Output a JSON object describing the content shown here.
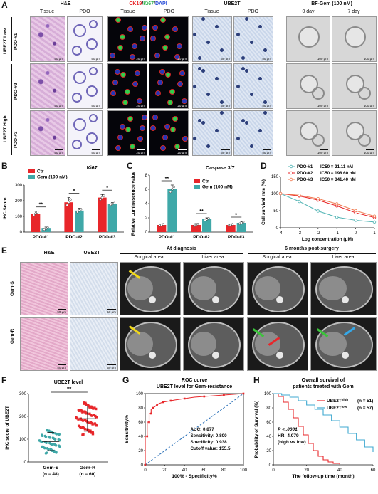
{
  "panels": {
    "A": {
      "label": "A",
      "headers": {
        "he": "H&E",
        "ck19": "CK19",
        "slash1": "/",
        "ki67": "Ki67",
        "slash2": "/",
        "dapi": "DAPI",
        "ube2t": "UBE2T",
        "bf": "BF-Gem (100 nM)"
      },
      "sub": {
        "tissue1": "Tissue",
        "pdo1": "PDO",
        "tissue2": "Tissue",
        "pdo2": "PDO",
        "tissue3": "Tissue",
        "pdo3": "PDO",
        "day0": "0 day",
        "day7": "7 day"
      },
      "rows": {
        "low": "UBE2T Low",
        "high": "UBE2T High",
        "pdo1": "PDO-#1",
        "pdo2": "PDO-#2",
        "pdo3": "PDO-#3"
      },
      "scales": {
        "s50": "50 μm",
        "s20": "20 μm",
        "s100": "100 μm"
      }
    },
    "B": {
      "label": "B"
    },
    "C": {
      "label": "C"
    },
    "D": {
      "label": "D"
    },
    "E": {
      "label": "E",
      "headers": {
        "he": "H&E",
        "ube2t": "UBE2T",
        "diag": "At diagnosis",
        "post": "6 months post-surgery",
        "surg1": "Surgical area",
        "liver1": "Liver area",
        "surg2": "Surgical area",
        "liver2": "Liver area"
      },
      "rows": {
        "gems": "Gem-S",
        "gemr": "Gem-R"
      },
      "scales": {
        "s50": "50 μm"
      }
    },
    "F": {
      "label": "F"
    },
    "G": {
      "label": "G"
    },
    "H": {
      "label": "H"
    }
  },
  "chart_data": [
    {
      "id": "B",
      "type": "bar",
      "title": "Ki67",
      "ylabel": "IHC Score",
      "ylim": [
        0,
        300
      ],
      "yticks": [
        "0",
        "100",
        "200",
        "300"
      ],
      "categories": [
        "PDO-#1",
        "PDO-#2",
        "PDO-#3"
      ],
      "series": [
        {
          "name": "Ctr",
          "color": "#e8262a",
          "values": [
            118,
            190,
            220
          ],
          "err": [
            15,
            30,
            20
          ]
        },
        {
          "name": "Gem (100 nM)",
          "color": "#3fa8a8",
          "values": [
            22,
            137,
            180
          ],
          "err": [
            10,
            15,
            8
          ]
        }
      ],
      "significance": [
        "**",
        "*",
        "*"
      ],
      "legend": "top-left"
    },
    {
      "id": "C",
      "type": "bar",
      "title": "Caspase 3/7",
      "ylabel": "Relative Luminescence value",
      "ylim": [
        0,
        8
      ],
      "yticks": [
        "0",
        "2",
        "4",
        "6",
        "8"
      ],
      "categories": [
        "PDO-#1",
        "PDO-#2",
        "PDO-#3"
      ],
      "series": [
        {
          "name": "Ctr",
          "color": "#e8262a",
          "values": [
            1.0,
            1.0,
            1.0
          ],
          "err": [
            0.15,
            0.2,
            0.15
          ]
        },
        {
          "name": "Gem (100 nM)",
          "color": "#3fa8a8",
          "values": [
            6.0,
            1.8,
            1.3
          ],
          "err": [
            0.6,
            0.2,
            0.2
          ]
        }
      ],
      "significance": [
        "**",
        "**",
        "*"
      ],
      "legend": "top-right"
    },
    {
      "id": "D",
      "type": "line",
      "ylabel": "Cell survival rate (%)",
      "xlabel": "Log concentration (μM)",
      "xlim": [
        -4,
        1
      ],
      "ylim": [
        0,
        150
      ],
      "xticks": [
        "-4",
        "-3",
        "-2",
        "-1",
        "0",
        "1"
      ],
      "yticks": [
        "0",
        "50",
        "100",
        "150"
      ],
      "series": [
        {
          "name": "PDO-#1",
          "ic50": "IC50 = 21.11 nM",
          "color": "#4fb3b3",
          "x": [
            -4,
            -3,
            -2,
            -1,
            0,
            1
          ],
          "y": [
            100,
            77,
            49,
            31,
            22,
            17
          ]
        },
        {
          "name": "PDO-#2",
          "ic50": "IC50 = 198.60 nM",
          "color": "#e8262a",
          "x": [
            -4,
            -3,
            -2,
            -1,
            0,
            1
          ],
          "y": [
            100,
            93,
            81,
            64,
            44,
            30
          ]
        },
        {
          "name": "PDO-#3",
          "ic50": "IC50 = 341.40 nM",
          "color": "#f07a50",
          "x": [
            -4,
            -3,
            -2,
            -1,
            0,
            1
          ],
          "y": [
            100,
            95,
            85,
            70,
            50,
            34
          ]
        }
      ],
      "legend": "top-right"
    },
    {
      "id": "F",
      "type": "scatter",
      "title": "UBE2T level",
      "ylabel": "IHC score of UBE2T",
      "ylim": [
        0,
        300
      ],
      "yticks": [
        "0",
        "100",
        "200",
        "300"
      ],
      "categories": [
        "Gem-S",
        "Gem-R"
      ],
      "n_labels": [
        "(n = 48)",
        "(n = 60)"
      ],
      "means": [
        90,
        190
      ],
      "sd": [
        40,
        55
      ],
      "colors": [
        "#3fa8a8",
        "#e8262a"
      ],
      "significance": "**"
    },
    {
      "id": "G",
      "type": "line",
      "title": "ROC curve",
      "subtitle": "UBE2T level for Gem-resistance",
      "ylabel": "Sensitivity%",
      "xlabel": "100% - Specificity%",
      "xlim": [
        0,
        100
      ],
      "ylim": [
        0,
        100
      ],
      "xticks": [
        "0",
        "20",
        "40",
        "60",
        "80",
        "100"
      ],
      "yticks": [
        "0",
        "20",
        "40",
        "60",
        "80",
        "100"
      ],
      "x": [
        0,
        0,
        2,
        2,
        4,
        4,
        6,
        6,
        8,
        10,
        12,
        14,
        18,
        22,
        26,
        30,
        40,
        50,
        60,
        70,
        80,
        90,
        100
      ],
      "y": [
        0,
        40,
        40,
        60,
        60,
        72,
        72,
        78,
        80,
        82,
        84,
        86,
        88,
        89,
        90,
        91,
        93,
        95,
        96,
        97,
        98,
        99,
        100
      ],
      "color": "#e8262a",
      "annotations": [
        "AUC: 0.877",
        "Sensitivity: 0.800",
        "Specificity: 0.938",
        "Cutoff value: 155.5"
      ]
    },
    {
      "id": "H",
      "type": "line",
      "title": "Overall survival of",
      "subtitle": "patients treated with Gem",
      "ylabel": "Probability of Survival (%)",
      "xlabel": "The follow-up time (month)",
      "xlim": [
        0,
        60
      ],
      "ylim": [
        0,
        100
      ],
      "xticks": [
        "0",
        "20",
        "40",
        "60"
      ],
      "yticks": [
        "0",
        "20",
        "40",
        "60",
        "80",
        "100"
      ],
      "series": [
        {
          "name": "UBE2T",
          "sup": "high",
          "n": "(n = 51)",
          "color": "#e8262a",
          "x": [
            0,
            3,
            6,
            9,
            12,
            15,
            18,
            21,
            24,
            27,
            30,
            33,
            36,
            40
          ],
          "y": [
            100,
            96,
            88,
            78,
            66,
            54,
            42,
            30,
            20,
            12,
            7,
            4,
            2,
            0
          ]
        },
        {
          "name": "UBE2T",
          "sup": "low",
          "n": "(n = 57)",
          "color": "#3fa8d0",
          "x": [
            0,
            5,
            10,
            15,
            20,
            25,
            30,
            35,
            40,
            45,
            50,
            55,
            60
          ],
          "y": [
            100,
            98,
            95,
            90,
            84,
            78,
            70,
            62,
            53,
            44,
            35,
            25,
            18
          ]
        }
      ],
      "stats": [
        "P < .0001",
        "HR: 4.079",
        "(high vs low)"
      ]
    }
  ]
}
